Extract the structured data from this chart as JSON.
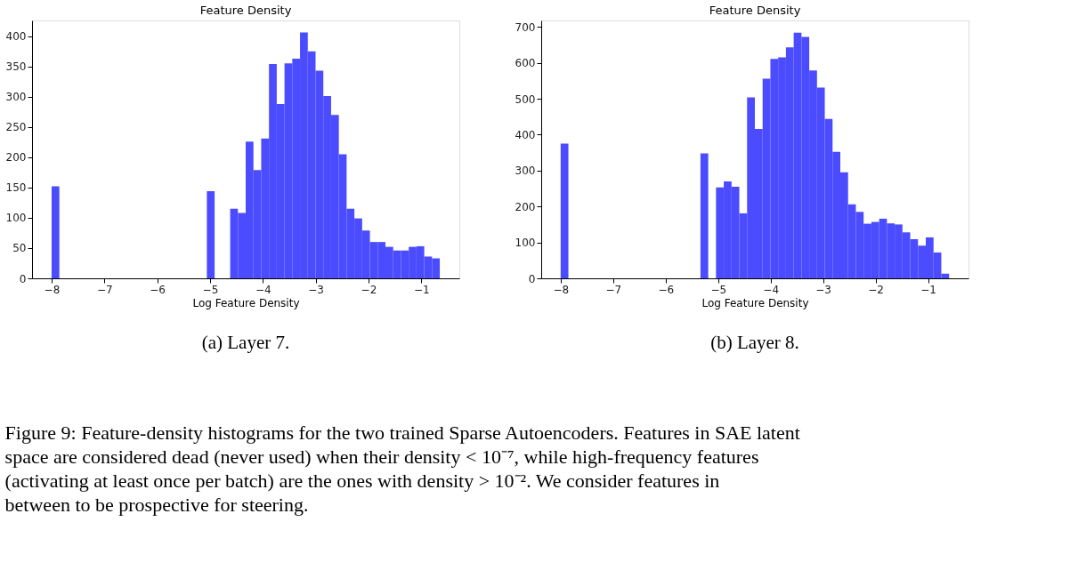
{
  "chart_data": [
    {
      "type": "histogram",
      "title": "Feature Density",
      "xlabel": "Log Feature Density",
      "color": "#4b4bff",
      "grid": false,
      "bins": [
        -8.0,
        -7.853,
        -7.706,
        -7.559,
        -7.412,
        -7.265,
        -7.118,
        -6.971,
        -6.824,
        -6.677,
        -6.53,
        -6.383,
        -6.236,
        -6.089,
        -5.942,
        -5.795,
        -5.648,
        -5.501,
        -5.354,
        -5.207,
        -5.06,
        -4.913,
        -4.766,
        -4.619,
        -4.472,
        -4.325,
        -4.178,
        -4.031,
        -3.884,
        -3.737,
        -3.59,
        -3.443,
        -3.296,
        -3.149,
        -3.002,
        -2.855,
        -2.708,
        -2.561,
        -2.414,
        -2.267,
        -2.12,
        -1.973,
        -1.826,
        -1.679,
        -1.532,
        -1.385,
        -1.238,
        -1.091,
        -0.944,
        -0.797,
        -0.65
      ],
      "values": [
        152,
        0,
        0,
        0,
        0,
        0,
        0,
        0,
        0,
        0,
        0,
        0,
        0,
        0,
        0,
        0,
        0,
        0,
        0,
        0,
        144,
        0,
        0,
        115,
        108,
        226,
        179,
        231,
        354,
        288,
        355,
        363,
        406,
        375,
        343,
        301,
        270,
        205,
        115,
        99,
        79,
        60,
        60,
        52,
        46,
        46,
        52,
        53,
        36,
        33
      ],
      "xlim": [
        -8.37,
        -0.28
      ],
      "xticks": [
        -8,
        -7,
        -6,
        -5,
        -4,
        -3,
        -2,
        -1
      ],
      "ylim": [
        0,
        426
      ],
      "yticks": [
        0,
        50,
        100,
        150,
        200,
        250,
        300,
        350,
        400
      ],
      "annotations": [
        "(a) Layer 7."
      ]
    },
    {
      "type": "histogram",
      "title": "Feature Density",
      "xlabel": "Log Feature Density",
      "color": "#4b4bff",
      "grid": false,
      "bins": [
        -8.0,
        -7.852,
        -7.704,
        -7.556,
        -7.408,
        -7.26,
        -7.112,
        -6.964,
        -6.816,
        -6.668,
        -6.52,
        -6.372,
        -6.224,
        -6.076,
        -5.928,
        -5.78,
        -5.632,
        -5.484,
        -5.336,
        -5.188,
        -5.04,
        -4.892,
        -4.744,
        -4.596,
        -4.448,
        -4.3,
        -4.152,
        -4.004,
        -3.856,
        -3.708,
        -3.56,
        -3.412,
        -3.264,
        -3.116,
        -2.968,
        -2.82,
        -2.672,
        -2.524,
        -2.376,
        -2.228,
        -2.08,
        -1.932,
        -1.784,
        -1.636,
        -1.488,
        -1.34,
        -1.192,
        -1.044,
        -0.896,
        -0.748,
        -0.6
      ],
      "values": [
        375,
        0,
        0,
        0,
        0,
        0,
        0,
        0,
        0,
        0,
        0,
        0,
        0,
        0,
        0,
        0,
        0,
        0,
        348,
        0,
        253,
        270,
        255,
        181,
        504,
        416,
        556,
        611,
        615,
        643,
        684,
        672,
        579,
        531,
        444,
        352,
        295,
        206,
        185,
        152,
        157,
        166,
        153,
        150,
        128,
        109,
        91,
        114,
        72,
        13
      ],
      "xlim": [
        -8.37,
        -0.23
      ],
      "xticks": [
        -8,
        -7,
        -6,
        -5,
        -4,
        -3,
        -2,
        -1
      ],
      "ylim": [
        0,
        718
      ],
      "yticks": [
        0,
        100,
        200,
        300,
        400,
        500,
        600,
        700
      ],
      "annotations": [
        "(b) Layer 8.",
        "Figure 9: Feature-density histograms for the two trained Sparse Autoencoders. Features in SAE latent space are considered dead (never used) when their density < 10⁻⁷, while high-frequency features (activating at least once per batch) are the ones with density > 10⁻². We consider features in between to be prospective for steering."
      ]
    }
  ]
}
